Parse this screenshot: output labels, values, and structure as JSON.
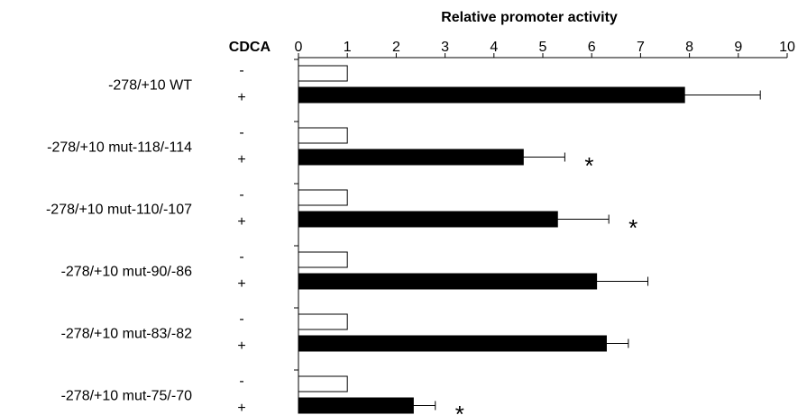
{
  "chart_data": {
    "type": "bar",
    "orientation": "horizontal",
    "title": "Relative promoter activity",
    "treatment_label": "CDCA",
    "treatment_levels": [
      "-",
      "+"
    ],
    "categories": [
      "-278/+10 WT",
      "-278/+10 mut-118/-114",
      "-278/+10 mut-110/-107",
      "-278/+10 mut-90/-86",
      "-278/+10 mut-83/-82",
      "-278/+10 mut-75/-70"
    ],
    "series": [
      {
        "level": "-",
        "fill": "#ffffff",
        "values": [
          1,
          1,
          1,
          1,
          1,
          1
        ],
        "errors": [
          0,
          0,
          0,
          0,
          0,
          0
        ]
      },
      {
        "level": "+",
        "fill": "#000000",
        "values": [
          7.9,
          4.6,
          5.3,
          6.1,
          6.3,
          2.35
        ],
        "errors": [
          1.55,
          0.85,
          1.05,
          1.05,
          0.45,
          0.45
        ]
      }
    ],
    "significance": [
      "",
      "*",
      "*",
      "",
      "",
      "*"
    ],
    "significance_symbol": "*",
    "xlim": [
      0,
      10
    ],
    "xticks": [
      "0",
      "1",
      "2",
      "3",
      "4",
      "5",
      "6",
      "7",
      "8",
      "9",
      "10"
    ],
    "axis_position": "top",
    "grid": false,
    "legend": "none"
  }
}
